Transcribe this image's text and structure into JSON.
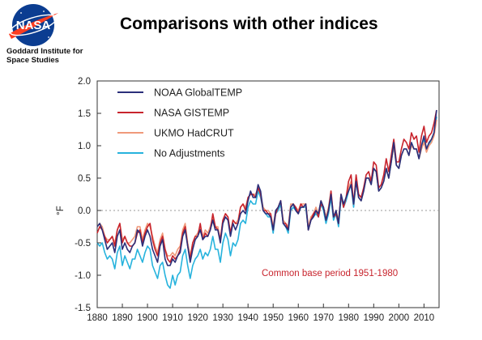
{
  "header": {
    "title": "Comparisons with other indices",
    "logo_text": "NASA",
    "org_line1": "Goddard Institute for",
    "org_line2": "Space Studies"
  },
  "chart_data": {
    "type": "line",
    "ylabel": "°F",
    "xlim": [
      1880,
      2016
    ],
    "ylim": [
      -1.5,
      2.0
    ],
    "y_ticks": [
      "2.0",
      "1.5",
      "1.0",
      "0.5",
      "0.0",
      "-0.5",
      "-1.0",
      "-1.5"
    ],
    "x_ticks": [
      "1880",
      "1890",
      "1900",
      "1910",
      "1920",
      "1930",
      "1940",
      "1950",
      "1960",
      "1970",
      "1980",
      "1990",
      "2000",
      "2010"
    ],
    "annotation": "Common base period 1951-1980",
    "legend_position": "top-left",
    "zero_line": "dotted",
    "x": [
      1880,
      1881,
      1882,
      1883,
      1884,
      1885,
      1886,
      1887,
      1888,
      1889,
      1890,
      1891,
      1892,
      1893,
      1894,
      1895,
      1896,
      1897,
      1898,
      1899,
      1900,
      1901,
      1902,
      1903,
      1904,
      1905,
      1906,
      1907,
      1908,
      1909,
      1910,
      1911,
      1912,
      1913,
      1914,
      1915,
      1916,
      1917,
      1918,
      1919,
      1920,
      1921,
      1922,
      1923,
      1924,
      1925,
      1926,
      1927,
      1928,
      1929,
      1930,
      1931,
      1932,
      1933,
      1934,
      1935,
      1936,
      1937,
      1938,
      1939,
      1940,
      1941,
      1942,
      1943,
      1944,
      1945,
      1946,
      1947,
      1948,
      1949,
      1950,
      1951,
      1952,
      1953,
      1954,
      1955,
      1956,
      1957,
      1958,
      1959,
      1960,
      1961,
      1962,
      1963,
      1964,
      1965,
      1966,
      1967,
      1968,
      1969,
      1970,
      1971,
      1972,
      1973,
      1974,
      1975,
      1976,
      1977,
      1978,
      1979,
      1980,
      1981,
      1982,
      1983,
      1984,
      1985,
      1986,
      1987,
      1988,
      1989,
      1990,
      1991,
      1992,
      1993,
      1994,
      1995,
      1996,
      1997,
      1998,
      1999,
      2000,
      2001,
      2002,
      2003,
      2004,
      2005,
      2006,
      2007,
      2008,
      2009,
      2010,
      2011,
      2012,
      2013,
      2014,
      2015
    ],
    "series": [
      {
        "name": "NOAA GlobalTEMP",
        "color": "#2b2f7a",
        "values": [
          -0.25,
          -0.2,
          -0.3,
          -0.45,
          -0.6,
          -0.55,
          -0.5,
          -0.65,
          -0.4,
          -0.3,
          -0.6,
          -0.5,
          -0.6,
          -0.65,
          -0.55,
          -0.5,
          -0.3,
          -0.35,
          -0.55,
          -0.4,
          -0.3,
          -0.4,
          -0.6,
          -0.7,
          -0.8,
          -0.55,
          -0.45,
          -0.75,
          -0.85,
          -0.85,
          -0.75,
          -0.8,
          -0.7,
          -0.65,
          -0.4,
          -0.3,
          -0.55,
          -0.8,
          -0.6,
          -0.45,
          -0.4,
          -0.3,
          -0.45,
          -0.4,
          -0.4,
          -0.3,
          -0.15,
          -0.3,
          -0.3,
          -0.5,
          -0.2,
          -0.1,
          -0.15,
          -0.4,
          -0.2,
          -0.3,
          -0.2,
          -0.05,
          0.0,
          -0.05,
          0.15,
          0.3,
          0.2,
          0.2,
          0.4,
          0.3,
          0.0,
          -0.05,
          -0.05,
          -0.1,
          -0.3,
          0.0,
          0.05,
          0.15,
          -0.2,
          -0.25,
          -0.3,
          0.05,
          0.1,
          0.0,
          -0.05,
          0.05,
          0.05,
          0.1,
          -0.3,
          -0.15,
          -0.1,
          0.0,
          -0.05,
          0.15,
          0.05,
          -0.15,
          0.0,
          0.25,
          -0.1,
          0.0,
          -0.2,
          0.25,
          0.1,
          0.2,
          0.3,
          0.4,
          0.1,
          0.45,
          0.2,
          0.15,
          0.3,
          0.5,
          0.5,
          0.4,
          0.65,
          0.6,
          0.3,
          0.35,
          0.45,
          0.65,
          0.5,
          0.75,
          1.05,
          0.7,
          0.65,
          0.85,
          0.95,
          0.95,
          0.85,
          1.05,
          0.95,
          0.95,
          0.8,
          1.0,
          1.15,
          0.95,
          1.05,
          1.1,
          1.2,
          1.55
        ]
      },
      {
        "name": "NASA GISTEMP",
        "color": "#c8242d",
        "values": [
          -0.35,
          -0.25,
          -0.3,
          -0.4,
          -0.5,
          -0.45,
          -0.4,
          -0.55,
          -0.3,
          -0.2,
          -0.5,
          -0.4,
          -0.5,
          -0.55,
          -0.55,
          -0.5,
          -0.35,
          -0.3,
          -0.5,
          -0.35,
          -0.25,
          -0.2,
          -0.45,
          -0.6,
          -0.7,
          -0.5,
          -0.4,
          -0.6,
          -0.75,
          -0.8,
          -0.7,
          -0.75,
          -0.7,
          -0.6,
          -0.35,
          -0.25,
          -0.55,
          -0.75,
          -0.5,
          -0.4,
          -0.4,
          -0.2,
          -0.45,
          -0.35,
          -0.4,
          -0.3,
          -0.05,
          -0.25,
          -0.3,
          -0.45,
          -0.15,
          -0.05,
          -0.1,
          -0.35,
          -0.15,
          -0.2,
          -0.2,
          0.05,
          0.1,
          0.0,
          0.2,
          0.25,
          0.25,
          0.2,
          0.35,
          0.25,
          0.0,
          0.0,
          -0.05,
          -0.05,
          -0.3,
          -0.05,
          0.05,
          0.15,
          -0.2,
          -0.2,
          -0.3,
          0.05,
          0.1,
          0.05,
          -0.05,
          0.1,
          0.05,
          0.1,
          -0.3,
          -0.15,
          -0.05,
          0.0,
          -0.1,
          0.1,
          0.05,
          -0.15,
          0.0,
          0.3,
          -0.1,
          -0.05,
          -0.2,
          0.25,
          0.05,
          0.2,
          0.45,
          0.55,
          0.1,
          0.55,
          0.25,
          0.2,
          0.35,
          0.55,
          0.6,
          0.45,
          0.75,
          0.7,
          0.35,
          0.4,
          0.55,
          0.8,
          0.6,
          0.85,
          1.1,
          0.75,
          0.75,
          0.95,
          1.1,
          1.05,
          0.95,
          1.2,
          1.1,
          1.15,
          0.9,
          1.15,
          1.3,
          1.05,
          1.15,
          1.2,
          1.35,
          1.55
        ]
      },
      {
        "name": "UKMO HadCRUT",
        "color": "#f0997a",
        "values": [
          -0.25,
          -0.2,
          -0.25,
          -0.4,
          -0.45,
          -0.45,
          -0.4,
          -0.5,
          -0.3,
          -0.2,
          -0.45,
          -0.4,
          -0.5,
          -0.5,
          -0.45,
          -0.4,
          -0.25,
          -0.25,
          -0.45,
          -0.3,
          -0.2,
          -0.25,
          -0.4,
          -0.55,
          -0.65,
          -0.45,
          -0.35,
          -0.6,
          -0.7,
          -0.7,
          -0.65,
          -0.7,
          -0.6,
          -0.55,
          -0.3,
          -0.2,
          -0.5,
          -0.7,
          -0.5,
          -0.4,
          -0.35,
          -0.25,
          -0.4,
          -0.3,
          -0.35,
          -0.25,
          -0.1,
          -0.25,
          -0.25,
          -0.45,
          -0.15,
          -0.05,
          -0.1,
          -0.35,
          -0.15,
          -0.2,
          -0.15,
          0.05,
          0.1,
          0.05,
          0.2,
          0.25,
          0.25,
          0.25,
          0.35,
          0.25,
          0.05,
          0.0,
          0.0,
          -0.05,
          -0.25,
          0.0,
          0.05,
          0.15,
          -0.15,
          -0.2,
          -0.25,
          0.1,
          0.1,
          0.05,
          0.0,
          0.1,
          0.1,
          0.1,
          -0.25,
          -0.1,
          -0.05,
          0.05,
          -0.05,
          0.15,
          0.05,
          -0.1,
          0.05,
          0.3,
          -0.1,
          0.0,
          -0.15,
          0.25,
          0.05,
          0.2,
          0.35,
          0.45,
          0.1,
          0.45,
          0.2,
          0.15,
          0.3,
          0.5,
          0.5,
          0.4,
          0.65,
          0.6,
          0.3,
          0.35,
          0.45,
          0.65,
          0.5,
          0.75,
          1.0,
          0.7,
          0.65,
          0.85,
          0.95,
          0.95,
          0.85,
          1.0,
          0.95,
          0.95,
          0.8,
          0.95,
          1.05,
          0.9,
          1.0,
          1.05,
          1.15,
          1.4
        ]
      },
      {
        "name": "No Adjustments",
        "color": "#27b3dd",
        "values": [
          -0.5,
          -0.55,
          -0.5,
          -0.65,
          -0.75,
          -0.7,
          -0.75,
          -0.9,
          -0.65,
          -0.55,
          -0.85,
          -0.7,
          -0.8,
          -0.9,
          -0.75,
          -0.75,
          -0.6,
          -0.7,
          -0.8,
          -0.65,
          -0.55,
          -0.6,
          -0.85,
          -0.95,
          -1.05,
          -0.85,
          -0.8,
          -1.0,
          -1.15,
          -1.2,
          -1.0,
          -1.15,
          -1.0,
          -0.95,
          -0.7,
          -0.6,
          -0.85,
          -1.05,
          -0.85,
          -0.75,
          -0.7,
          -0.6,
          -0.75,
          -0.65,
          -0.7,
          -0.6,
          -0.4,
          -0.6,
          -0.6,
          -0.8,
          -0.5,
          -0.35,
          -0.45,
          -0.7,
          -0.5,
          -0.55,
          -0.45,
          -0.2,
          -0.15,
          -0.2,
          0.05,
          0.15,
          0.1,
          0.1,
          0.3,
          0.2,
          0.0,
          -0.05,
          -0.1,
          -0.1,
          -0.35,
          -0.05,
          0.0,
          0.1,
          -0.2,
          -0.25,
          -0.35,
          0.0,
          0.05,
          0.0,
          -0.05,
          0.05,
          0.05,
          0.05,
          -0.3,
          -0.15,
          -0.1,
          -0.05,
          -0.1,
          0.1,
          0.0,
          -0.2,
          -0.05,
          0.2,
          -0.15,
          -0.05,
          -0.25,
          0.2,
          0.05,
          0.15,
          0.3,
          0.4,
          0.05,
          0.45,
          0.2,
          0.15,
          0.3,
          0.5,
          0.5,
          0.4,
          0.65,
          0.6,
          0.3,
          0.35,
          0.45,
          0.65,
          0.5,
          0.75,
          1.0,
          0.7,
          0.65,
          0.85,
          0.95,
          0.95,
          0.85,
          1.05,
          0.95,
          0.95,
          0.8,
          0.95,
          1.1,
          0.95,
          1.0,
          1.1,
          1.2,
          1.45
        ]
      }
    ]
  }
}
